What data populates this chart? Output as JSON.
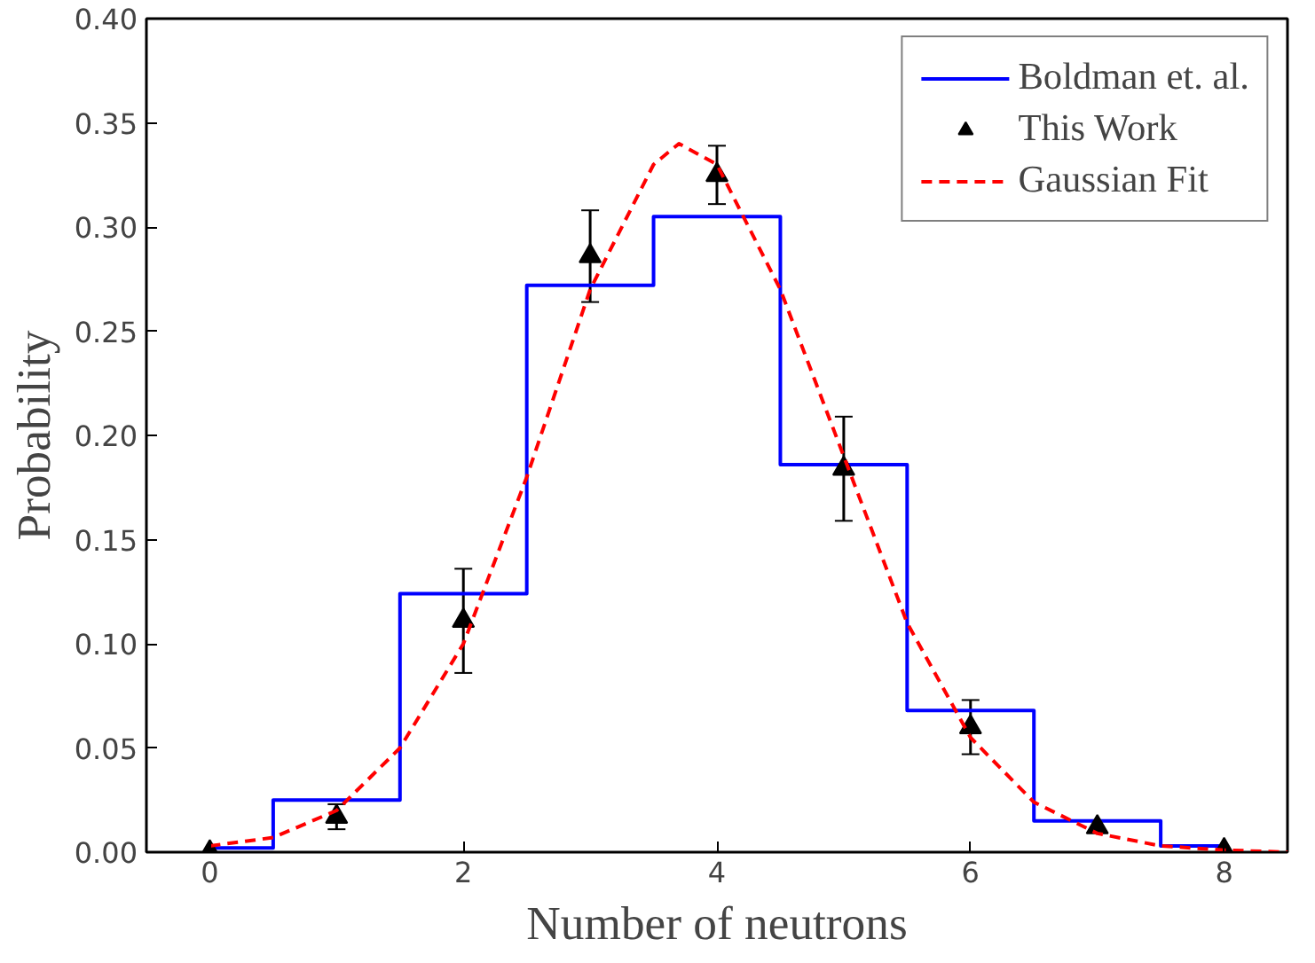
{
  "chart_data": {
    "type": "line",
    "xlabel": "Number of neutrons",
    "ylabel": "Probability",
    "xlim": [
      -0.5,
      8.5
    ],
    "ylim": [
      0,
      0.4
    ],
    "xticks": [
      0,
      2,
      4,
      6,
      8
    ],
    "yticks": [
      {
        "value": 0,
        "label": "0.00"
      },
      {
        "value": 0.05,
        "label": "0.05"
      },
      {
        "value": 0.1,
        "label": "0.10"
      },
      {
        "value": 0.15,
        "label": "0.15"
      },
      {
        "value": 0.2,
        "label": "0.20"
      },
      {
        "value": 0.25,
        "label": "0.25"
      },
      {
        "value": 0.3,
        "label": "0.30"
      },
      {
        "value": 0.35,
        "label": "0.35"
      },
      {
        "value": 0.4,
        "label": "0.40"
      }
    ],
    "grid": false,
    "legend": "top right",
    "series": [
      {
        "name": "Boldman et. al.",
        "type": "step",
        "color": "#0000ff",
        "x": [
          0,
          1,
          2,
          3,
          4,
          5,
          6,
          7,
          8
        ],
        "values": [
          0.002,
          0.025,
          0.124,
          0.272,
          0.305,
          0.186,
          0.068,
          0.015,
          0.003
        ]
      },
      {
        "name": "This Work",
        "type": "scatter",
        "marker": "triangle",
        "color": "#000000",
        "x": [
          0,
          1,
          2,
          3,
          4,
          5,
          6,
          7,
          8
        ],
        "values": [
          0.0,
          0.017,
          0.111,
          0.286,
          0.325,
          0.184,
          0.06,
          0.012,
          0.001
        ],
        "errors": [
          null,
          0.006,
          0.025,
          0.022,
          0.014,
          0.025,
          0.013,
          null,
          null
        ]
      },
      {
        "name": "Gaussian Fit",
        "line_style": "dashed",
        "color": "#ff0000",
        "x": [
          0,
          0.5,
          1,
          1.5,
          2,
          2.5,
          3,
          3.5,
          3.7,
          4,
          4.5,
          5,
          5.5,
          6,
          6.5,
          7,
          7.5,
          8,
          8.5
        ],
        "values": [
          0.003,
          0.007,
          0.02,
          0.05,
          0.1,
          0.18,
          0.27,
          0.33,
          0.34,
          0.33,
          0.27,
          0.19,
          0.11,
          0.055,
          0.024,
          0.009,
          0.003,
          0.001,
          0.0
        ]
      }
    ]
  }
}
